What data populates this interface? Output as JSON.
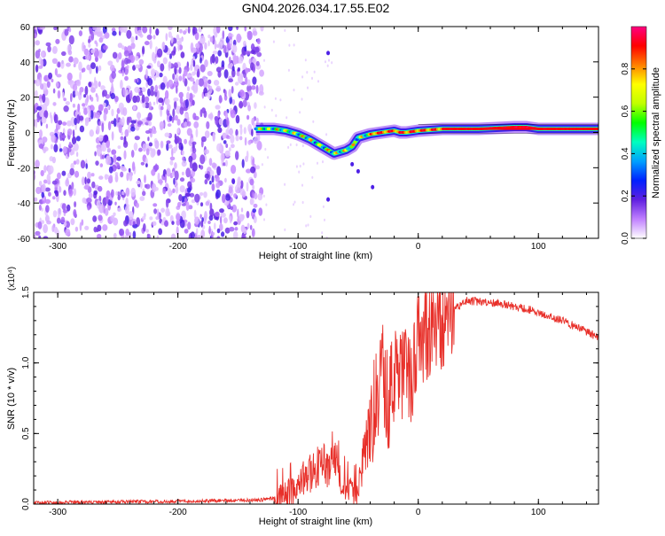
{
  "title": "GN04.2026.034.17.55.E02",
  "chart_data": [
    {
      "type": "heatmap",
      "xlabel": "Height of straight line (km)",
      "ylabel": "Frequency (Hz)",
      "xlim": [
        -320,
        150
      ],
      "ylim": [
        -60,
        60
      ],
      "xticks": [
        -300,
        -200,
        -100,
        0,
        100
      ],
      "yticks": [
        -60,
        -40,
        -20,
        0,
        20,
        40,
        60
      ],
      "colorbar": {
        "label": "Normalized spectral amplitude",
        "range": [
          0,
          1
        ],
        "ticks": [
          "0.0",
          "0.2",
          "0.4",
          "0.6",
          "0.8"
        ],
        "tick_values": [
          0.0,
          0.2,
          0.4,
          0.6,
          0.8
        ],
        "colors": [
          "#ffffff",
          "#c080ff",
          "#6020e0",
          "#0020ff",
          "#00a0ff",
          "#00ffc0",
          "#00ff00",
          "#c0ff00",
          "#ffff00",
          "#ff8000",
          "#ff0000",
          "#ff0080"
        ]
      },
      "ridge": {
        "x": [
          -135,
          -120,
          -110,
          -100,
          -90,
          -80,
          -70,
          -60,
          -55,
          -50,
          -45,
          -40,
          -30,
          -20,
          -15,
          -10,
          0,
          20,
          50,
          80,
          90,
          100,
          150
        ],
        "y": [
          2,
          2,
          1,
          -1,
          -4,
          -8,
          -12,
          -10,
          -8,
          -3,
          -2,
          -1,
          0,
          1,
          0,
          0,
          1,
          2,
          2,
          3,
          3,
          2,
          2
        ]
      },
      "noise_region": {
        "x": [
          -320,
          -130
        ],
        "y": [
          -60,
          60
        ]
      }
    },
    {
      "type": "line",
      "xlabel": "Height of straight line (km)",
      "ylabel": "SNR (10 * v/v)",
      "multiplier": "(x10⁴)",
      "xlim": [
        -320,
        150
      ],
      "ylim": [
        0,
        1.5
      ],
      "xticks": [
        -300,
        -200,
        -100,
        0,
        100
      ],
      "yticks": [
        "0.0",
        "0.5",
        "1.0",
        "1.5"
      ],
      "ytick_values": [
        0.0,
        0.5,
        1.0,
        1.5
      ],
      "series": [
        {
          "color": "#e8302a",
          "x": [
            -320,
            -200,
            -130,
            -110,
            -100,
            -90,
            -80,
            -75,
            -70,
            -65,
            -60,
            -55,
            -50,
            -45,
            -40,
            -35,
            -30,
            -25,
            -20,
            -15,
            -10,
            -5,
            0,
            10,
            20,
            30,
            40,
            60,
            80,
            100,
            120,
            150
          ],
          "y": [
            0.01,
            0.02,
            0.03,
            0.06,
            0.14,
            0.22,
            0.28,
            0.25,
            0.4,
            0.2,
            0.12,
            0.06,
            0.1,
            0.35,
            0.55,
            0.75,
            1.0,
            0.7,
            0.95,
            0.85,
            0.95,
            0.9,
            1.15,
            1.2,
            1.3,
            1.38,
            1.44,
            1.43,
            1.4,
            1.36,
            1.3,
            1.18
          ]
        }
      ]
    }
  ]
}
